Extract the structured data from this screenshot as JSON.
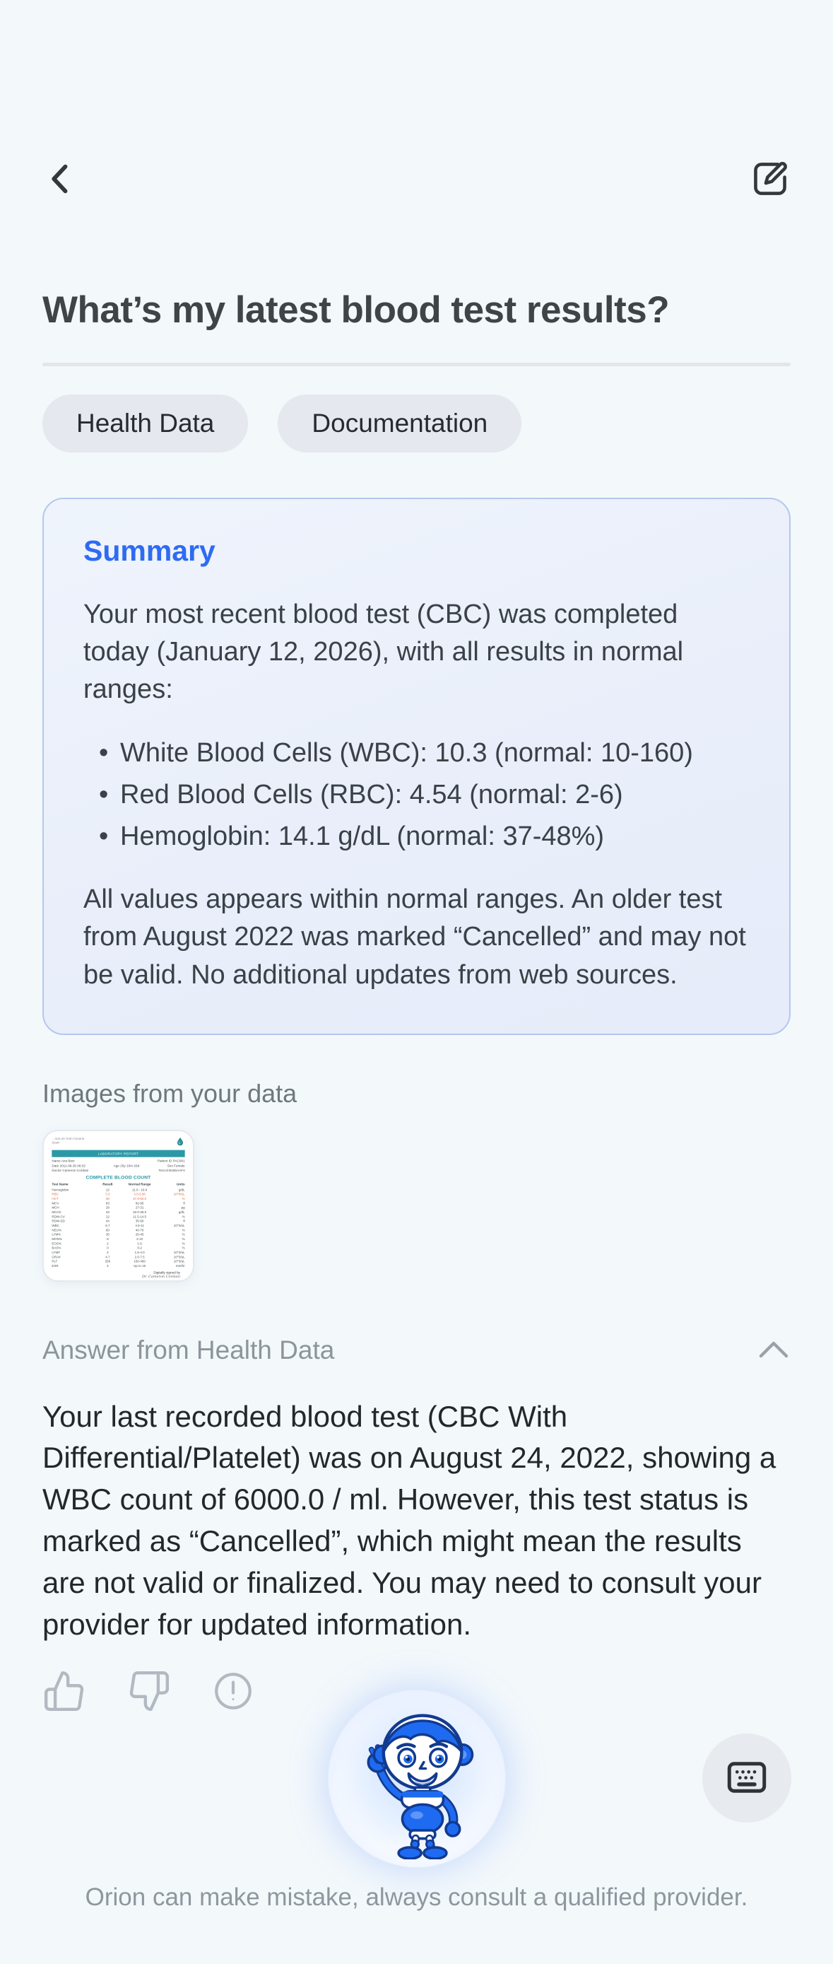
{
  "colors": {
    "page_bg": "#f3f8fb",
    "accent_blue": "#2e6bf2",
    "card_border": "#b5c7ee",
    "chip_bg": "#e5e8ee",
    "muted_text": "#8c959a",
    "lab_teal": "#2b98a6",
    "lab_abnormal": "#dd6a3d",
    "mascot_blue": "#1e6bf1"
  },
  "header": {
    "back_icon": "chevron-left-icon",
    "compose_icon": "edit-compose-icon"
  },
  "question": {
    "title": "What’s my latest blood test results?"
  },
  "chips": [
    {
      "label": "Health Data"
    },
    {
      "label": "Documentation"
    }
  ],
  "summary": {
    "heading": "Summary",
    "intro": "Your most recent blood test (CBC) was completed today (January 12, 2026), with all results in normal ranges:",
    "bullets": [
      "White Blood Cells (WBC): 10.3 (normal: 10-160)",
      "Red Blood Cells (RBC): 4.54 (normal: 2-6)",
      "Hemoglobin: 14.1 g/dL (normal: 37-48%)"
    ],
    "outro": "All values appears within normal ranges. An older test from August 2022 was marked “Cancelled” and may not be valid. No additional updates from web sources."
  },
  "images_section": {
    "label": "Images from your data"
  },
  "thumbnail": {
    "hospital_line1": "…mas de Gran Canaria",
    "hospital_line2": "Spain",
    "header_bar": "LABORATORY REPORT",
    "meta": [
      {
        "left": "Name  Ana Betz",
        "mid": "",
        "right": "Patient ID  PAC001"
      },
      {
        "left": "Date  2011-08-25 08:32",
        "mid": "Age  25y 10m 26d",
        "right": "Sex  Female"
      },
      {
        "left": "Doctor  Cameron Cordani",
        "mid": "",
        "right": "Test id  B165AAF4"
      }
    ],
    "report_title": "COMPLETE BLOOD COUNT",
    "table": {
      "headers": [
        "Test Name",
        "Result",
        "Normal Range",
        "Units"
      ],
      "rows": [
        {
          "cells": [
            "Hemoglobin",
            "12",
            "11.0 - 16.0",
            "g/dL"
          ],
          "abnormal": false
        },
        {
          "cells": [
            "RBC",
            "3.3",
            "3.5-5.50",
            "10^6/uL"
          ],
          "abnormal": true
        },
        {
          "cells": [
            "HCT",
            "36",
            "37.0-50.0",
            "%"
          ],
          "abnormal": true
        },
        {
          "cells": [
            "MCV",
            "83",
            "82-95",
            "fl"
          ],
          "abnormal": false
        },
        {
          "cells": [
            "MCH",
            "28",
            "27-31",
            "pg"
          ],
          "abnormal": false
        },
        {
          "cells": [
            "MCHC",
            "33",
            "32.0-36.0",
            "g/dL"
          ],
          "abnormal": false
        },
        {
          "cells": [
            "RDW-CV",
            "12",
            "11.5-14.5",
            "%"
          ],
          "abnormal": false
        },
        {
          "cells": [
            "RDW-SD",
            "44",
            "35-56",
            "fl"
          ],
          "abnormal": false
        },
        {
          "cells": [
            "WBC",
            "6.7",
            "4.5-11",
            "10^3/uL"
          ],
          "abnormal": false
        },
        {
          "cells": [
            "NEU%",
            "60",
            "40-70",
            "%"
          ],
          "abnormal": false
        },
        {
          "cells": [
            "LYM%",
            "30",
            "20-45",
            "%"
          ],
          "abnormal": false
        },
        {
          "cells": [
            "MON%",
            "8",
            "2-10",
            "%"
          ],
          "abnormal": false
        },
        {
          "cells": [
            "EOS%",
            "2",
            "1-6",
            "%"
          ],
          "abnormal": false
        },
        {
          "cells": [
            "BAS%",
            "0",
            "0-2",
            "%"
          ],
          "abnormal": false
        },
        {
          "cells": [
            "LYM#",
            "2",
            "1.5-4.0",
            "10^3/uL"
          ],
          "abnormal": false
        },
        {
          "cells": [
            "GRA#",
            "4.7",
            "2.0-7.5",
            "10^3/uL"
          ],
          "abnormal": false
        },
        {
          "cells": [
            "PLT",
            "256",
            "150-450",
            "10^3/uL"
          ],
          "abnormal": false
        },
        {
          "cells": [
            "ESR",
            "2",
            "Up to 15",
            "mm/hr"
          ],
          "abnormal": false
        }
      ]
    },
    "signed_by_label": "Digitally signed by",
    "signed_by_name": "Dr. Cameron Cordani"
  },
  "answer_section": {
    "label": "Answer from Health Data",
    "collapse_icon": "chevron-up-icon",
    "body": "Your last recorded blood test (CBC With Differential/Platelet) was on August 24, 2022, showing a WBC count of 6000.0 / ml. However, this test status is marked as “Cancelled”, which might mean the results are not valid or finalized. You may need to consult your provider for updated information."
  },
  "feedback": {
    "icons": [
      "thumbs-up-icon",
      "thumbs-down-icon",
      "report-issue-icon"
    ]
  },
  "assistant": {
    "avatar": "orion-robot-mascot",
    "keyboard_icon": "keyboard-icon"
  },
  "footer": {
    "disclaimer": "Orion can make mistake, always consult a qualified provider."
  }
}
